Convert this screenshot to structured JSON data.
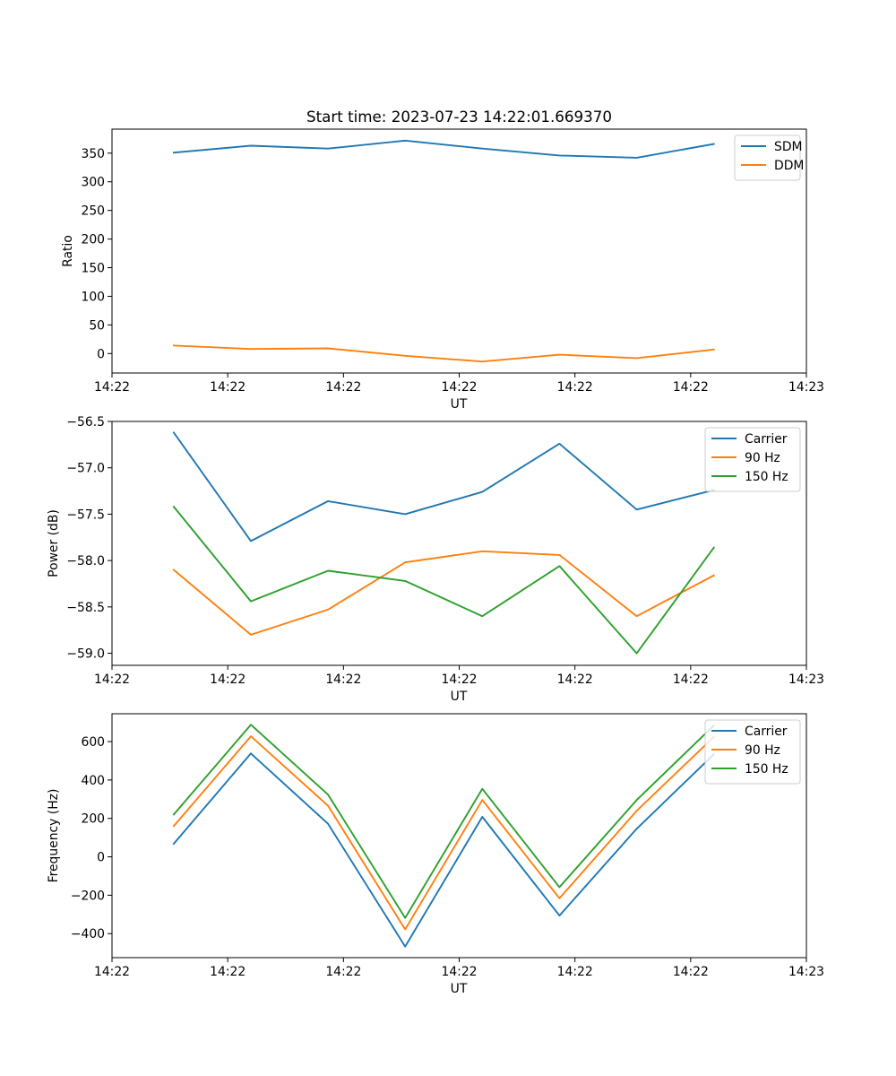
{
  "figure_title": "Start time: 2023-07-23 14:22:01.669370",
  "colors": {
    "blue": "#1f77b4",
    "orange": "#ff7f0e",
    "green": "#2ca02c"
  },
  "chart_data": [
    {
      "type": "line",
      "name": "ratio",
      "title": "Start time: 2023-07-23 14:22:01.669370",
      "xlabel": "UT",
      "ylabel": "Ratio",
      "x": [
        1,
        2,
        3,
        4,
        5,
        6,
        7,
        8
      ],
      "xlim": [
        0.2,
        9.2
      ],
      "xticks": [
        0.2,
        1.7,
        3.2,
        4.7,
        6.2,
        7.7,
        9.2
      ],
      "xtick_labels": [
        "14:22",
        "14:22",
        "14:22",
        "14:22",
        "14:22",
        "14:22",
        "14:23"
      ],
      "ylim": [
        -34,
        392
      ],
      "yticks": [
        0,
        50,
        100,
        150,
        200,
        250,
        300,
        350
      ],
      "ytick_labels": [
        "0",
        "50",
        "100",
        "150",
        "200",
        "250",
        "300",
        "350"
      ],
      "legend_position": "upper right",
      "series": [
        {
          "name": "SDM",
          "color": "#1f77b4",
          "values": [
            351,
            363,
            358,
            372,
            358,
            346,
            342,
            366
          ]
        },
        {
          "name": "DDM",
          "color": "#ff7f0e",
          "values": [
            14,
            8,
            9,
            -4,
            -14,
            -2,
            -8,
            7
          ]
        }
      ]
    },
    {
      "type": "line",
      "name": "power",
      "title": "",
      "xlabel": "UT",
      "ylabel": "Power (dB)",
      "x": [
        1,
        2,
        3,
        4,
        5,
        6,
        7,
        8
      ],
      "xlim": [
        0.2,
        9.2
      ],
      "xticks": [
        0.2,
        1.7,
        3.2,
        4.7,
        6.2,
        7.7,
        9.2
      ],
      "xtick_labels": [
        "14:22",
        "14:22",
        "14:22",
        "14:22",
        "14:22",
        "14:22",
        "14:23"
      ],
      "ylim": [
        -59.13,
        -56.5
      ],
      "yticks": [
        -59.0,
        -58.5,
        -58.0,
        -57.5,
        -57.0,
        -56.5
      ],
      "ytick_labels": [
        "−59.0",
        "−58.5",
        "−58.0",
        "−57.5",
        "−57.0",
        "−56.5"
      ],
      "legend_position": "upper right",
      "series": [
        {
          "name": "Carrier",
          "color": "#1f77b4",
          "values": [
            -56.62,
            -57.79,
            -57.36,
            -57.5,
            -57.26,
            -56.74,
            -57.45,
            -57.24
          ]
        },
        {
          "name": "90 Hz",
          "color": "#ff7f0e",
          "values": [
            -58.1,
            -58.8,
            -58.53,
            -58.02,
            -57.9,
            -57.94,
            -58.6,
            -58.16
          ]
        },
        {
          "name": "150 Hz",
          "color": "#2ca02c",
          "values": [
            -57.42,
            -58.44,
            -58.11,
            -58.22,
            -58.6,
            -58.06,
            -59.0,
            -57.86
          ]
        }
      ]
    },
    {
      "type": "line",
      "name": "frequency",
      "title": "",
      "xlabel": "UT",
      "ylabel": "Frequency (Hz)",
      "x": [
        1,
        2,
        3,
        4,
        5,
        6,
        7,
        8
      ],
      "xlim": [
        0.2,
        9.2
      ],
      "xticks": [
        0.2,
        1.7,
        3.2,
        4.7,
        6.2,
        7.7,
        9.2
      ],
      "xtick_labels": [
        "14:22",
        "14:22",
        "14:22",
        "14:22",
        "14:22",
        "14:22",
        "14:23"
      ],
      "ylim": [
        -525,
        745
      ],
      "yticks": [
        -400,
        -200,
        0,
        200,
        400,
        600
      ],
      "ytick_labels": [
        "−400",
        "−200",
        "0",
        "200",
        "400",
        "600"
      ],
      "legend_position": "upper right",
      "series": [
        {
          "name": "Carrier",
          "color": "#1f77b4",
          "values": [
            68,
            538,
            172,
            -467,
            208,
            -306,
            146,
            534
          ]
        },
        {
          "name": "90 Hz",
          "color": "#ff7f0e",
          "values": [
            160,
            628,
            266,
            -378,
            296,
            -216,
            240,
            624
          ]
        },
        {
          "name": "150 Hz",
          "color": "#2ca02c",
          "values": [
            220,
            688,
            324,
            -318,
            354,
            -158,
            296,
            684
          ]
        }
      ]
    }
  ]
}
